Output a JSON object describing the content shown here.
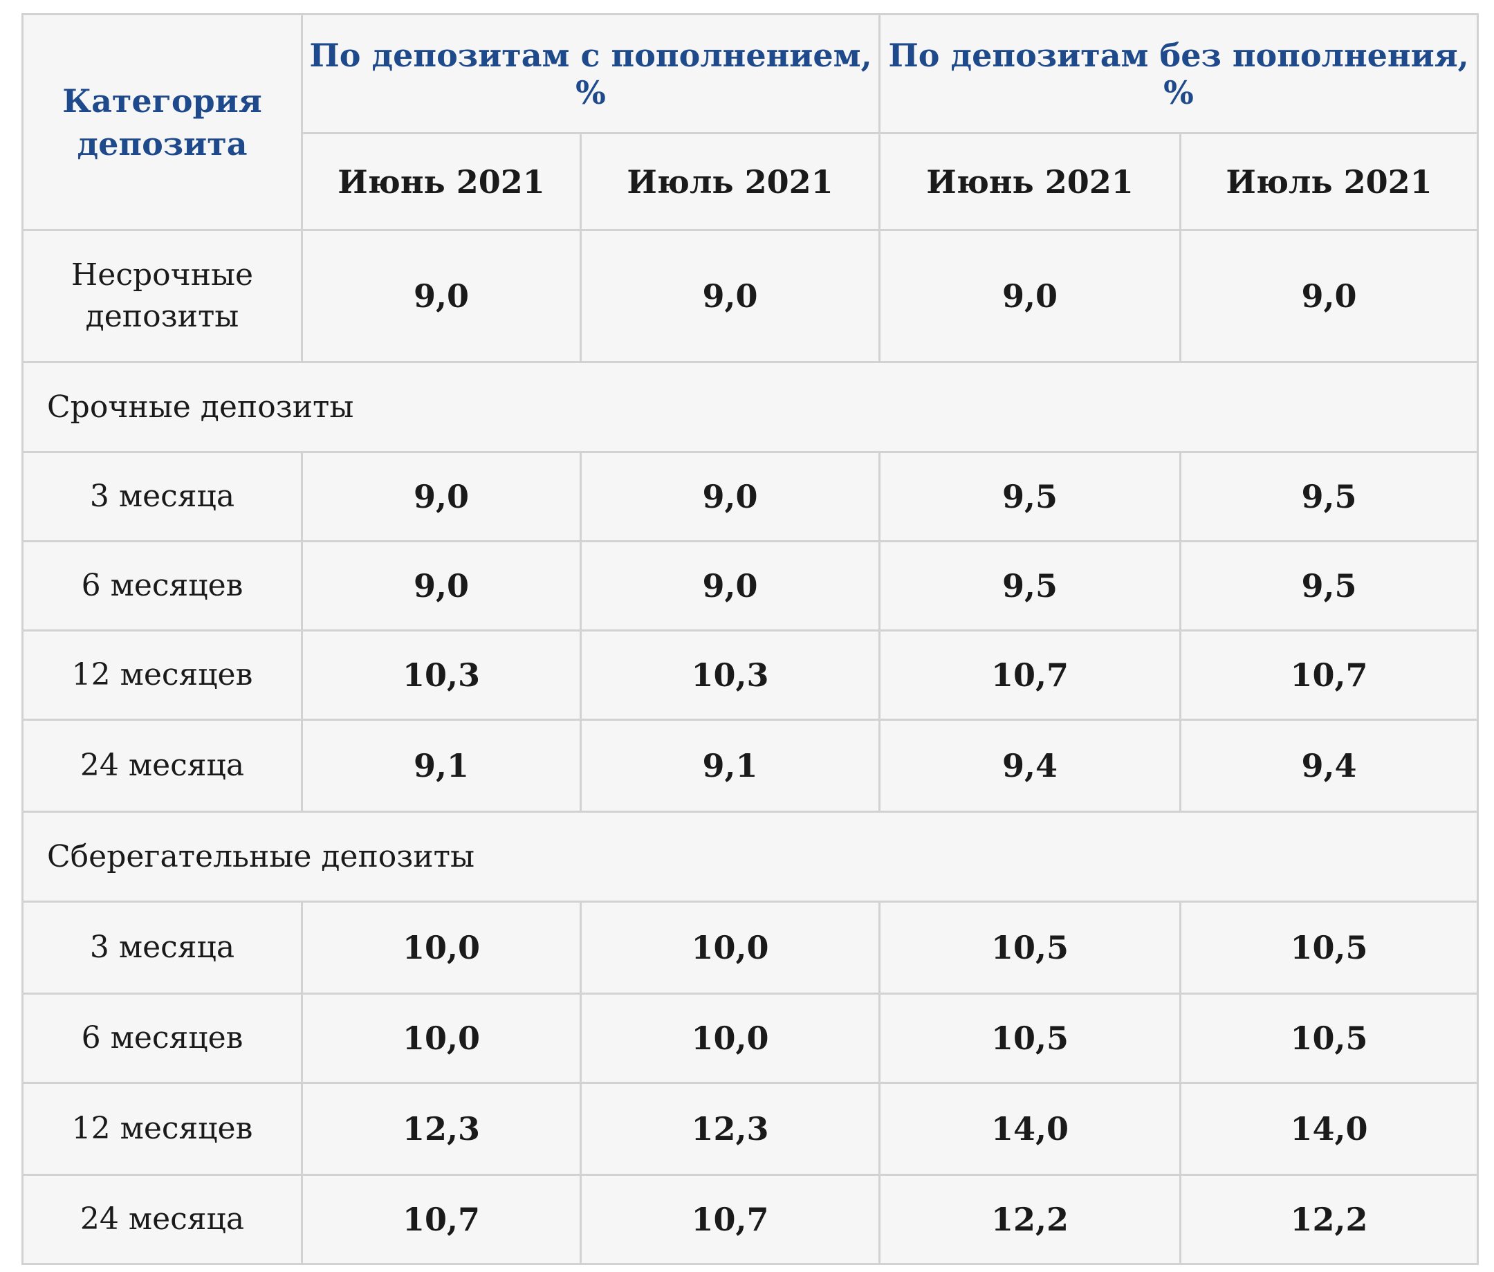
{
  "header": {
    "category": "Категория депозита",
    "group_with_topup": "По депозитам с пополнением, %",
    "group_without_topup": "По депозитам без пополнения, %",
    "months": [
      "Июнь 2021",
      "Июль 2021",
      "Июнь 2021",
      "Июль 2021"
    ]
  },
  "rows": {
    "nonterm": {
      "label": "Несрочные депозиты",
      "values": [
        "9,0",
        "9,0",
        "9,0",
        "9,0"
      ]
    },
    "term_section": "Срочные депозиты",
    "term": [
      {
        "label": "3 месяца",
        "values": [
          "9,0",
          "9,0",
          "9,5",
          "9,5"
        ]
      },
      {
        "label": "6 месяцев",
        "values": [
          "9,0",
          "9,0",
          "9,5",
          "9,5"
        ]
      },
      {
        "label": "12 месяцев",
        "values": [
          "10,3",
          "10,3",
          "10,7",
          "10,7"
        ]
      },
      {
        "label": "24 месяца",
        "values": [
          "9,1",
          "9,1",
          "9,4",
          "9,4"
        ]
      }
    ],
    "savings_section": "Сберегательные депозиты",
    "savings": [
      {
        "label": "3 месяца",
        "values": [
          "10,0",
          "10,0",
          "10,5",
          "10,5"
        ]
      },
      {
        "label": "6 месяцев",
        "values": [
          "10,0",
          "10,0",
          "10,5",
          "10,5"
        ]
      },
      {
        "label": "12 месяцев",
        "values": [
          "12,3",
          "12,3",
          "14,0",
          "14,0"
        ]
      },
      {
        "label": "24 месяца",
        "values": [
          "10,7",
          "10,7",
          "12,2",
          "12,2"
        ]
      }
    ]
  }
}
